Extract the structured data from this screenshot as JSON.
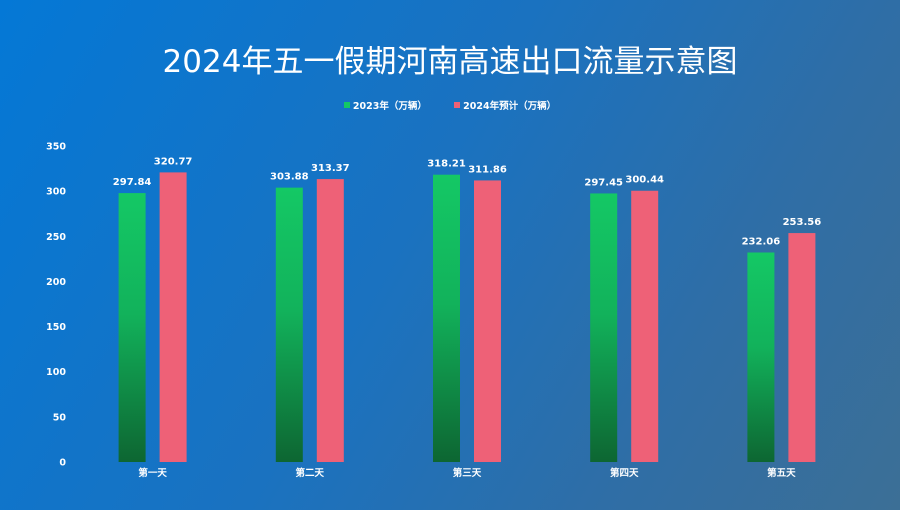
{
  "chart_data": {
    "type": "bar",
    "title": "2024年五一假期河南高速出口流量示意图",
    "categories": [
      "第一天",
      "第二天",
      "第三天",
      "第四天",
      "第五天"
    ],
    "series": [
      {
        "name": "2023年（万辆）",
        "values": [
          297.84,
          303.88,
          318.21,
          297.45,
          232.06
        ],
        "color": "#14c865"
      },
      {
        "name": "2024年预计（万辆）",
        "values": [
          320.77,
          313.37,
          311.86,
          300.44,
          253.56
        ],
        "color": "#ee6177"
      }
    ],
    "ylim": [
      0,
      350
    ],
    "yticks": [
      0,
      50,
      100,
      150,
      200,
      250,
      300,
      350
    ],
    "grid": false,
    "legend": "top-center",
    "xlabel": "",
    "ylabel": ""
  }
}
